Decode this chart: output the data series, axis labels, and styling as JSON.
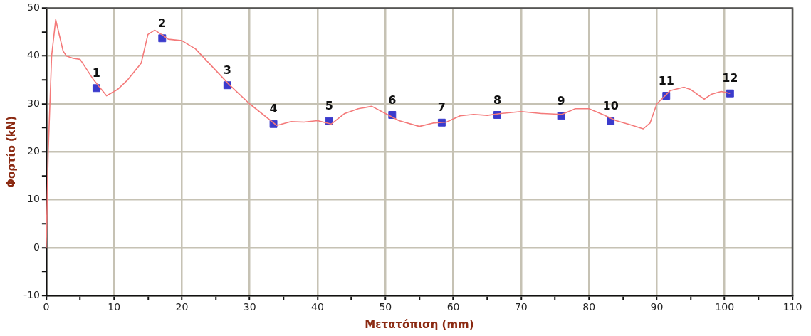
{
  "chart_data": {
    "type": "line",
    "xlabel": "Μετατόπιση (mm)",
    "ylabel": "Φορτίο (kN)",
    "xlim": [
      0,
      110
    ],
    "ylim": [
      -10,
      50
    ],
    "xticks": [
      0,
      {
        "value": 5,
        "label": null
      },
      10,
      {
        "value": 15,
        "label": null
      },
      20,
      {
        "value": 25,
        "label": null
      },
      30,
      {
        "value": 35,
        "label": null
      },
      40,
      {
        "value": 45,
        "label": null
      },
      50,
      {
        "value": 55,
        "label": null
      },
      60,
      {
        "value": 65,
        "label": null
      },
      70,
      {
        "value": 75,
        "label": null
      },
      80,
      {
        "value": 85,
        "label": null
      },
      90,
      {
        "value": 95,
        "label": null
      },
      100,
      {
        "value": 105,
        "label": null
      },
      110
    ],
    "yticks": [
      -10,
      {
        "value": -5,
        "label": null
      },
      0,
      {
        "value": 5,
        "label": null
      },
      10,
      {
        "value": 15,
        "label": null
      },
      20,
      {
        "value": 25,
        "label": null
      },
      30,
      {
        "value": 35,
        "label": null
      },
      40,
      {
        "value": 45,
        "label": null
      },
      50
    ],
    "grid": true,
    "legend": false,
    "series": [
      {
        "color": "#f47a7a",
        "marker": "none",
        "x": [
          0,
          0.3,
          0.8,
          1.4,
          2,
          2.5,
          3,
          4,
          5,
          7,
          8.9,
          10.5,
          12,
          14,
          15,
          16,
          17,
          18,
          20,
          22,
          27,
          30,
          34,
          36,
          38,
          40,
          42,
          44,
          46,
          48,
          50,
          52,
          55,
          57,
          59,
          61,
          63,
          65,
          67,
          70,
          73,
          76,
          78,
          80,
          82,
          84,
          86,
          88,
          89,
          90,
          92,
          94,
          95,
          97,
          98,
          99.5,
          100.8
        ],
        "values": [
          0,
          20,
          40,
          47.6,
          44,
          41,
          40,
          39.5,
          39.3,
          35,
          31.7,
          33,
          35,
          38.5,
          44.5,
          45.4,
          44.5,
          43.5,
          43.2,
          41.5,
          34,
          30,
          25.5,
          26.3,
          26.2,
          26.5,
          25.8,
          28,
          29,
          29.5,
          28,
          26.5,
          25.3,
          26,
          26.2,
          27.5,
          27.8,
          27.6,
          28,
          28.4,
          28,
          27.8,
          29,
          29,
          27.8,
          26.5,
          25.7,
          24.8,
          26,
          30,
          32.8,
          33.5,
          33,
          31,
          32,
          32.6,
          32.2
        ]
      },
      {
        "type": "scatter",
        "color": "#3b3bcc",
        "marker": "square",
        "x": [
          7.4,
          17.1,
          26.7,
          33.5,
          41.7,
          51.0,
          58.3,
          66.5,
          75.9,
          83.2,
          91.4,
          100.8
        ],
        "values": [
          33.3,
          43.7,
          33.9,
          25.8,
          26.4,
          27.7,
          26.1,
          27.7,
          27.5,
          26.4,
          31.7,
          32.2
        ]
      }
    ],
    "annotations": [
      {
        "text": "1",
        "x": 7.4,
        "y": 33.3
      },
      {
        "text": "2",
        "x": 17.1,
        "y": 43.7
      },
      {
        "text": "3",
        "x": 26.7,
        "y": 33.9
      },
      {
        "text": "4",
        "x": 33.5,
        "y": 25.8
      },
      {
        "text": "5",
        "x": 41.7,
        "y": 26.4
      },
      {
        "text": "6",
        "x": 51.0,
        "y": 27.7
      },
      {
        "text": "7",
        "x": 58.3,
        "y": 26.1
      },
      {
        "text": "8",
        "x": 66.5,
        "y": 27.7
      },
      {
        "text": "9",
        "x": 75.9,
        "y": 27.5
      },
      {
        "text": "10",
        "x": 83.2,
        "y": 26.4
      },
      {
        "text": "11",
        "x": 91.4,
        "y": 31.7
      },
      {
        "text": "12",
        "x": 100.8,
        "y": 32.2
      }
    ]
  }
}
